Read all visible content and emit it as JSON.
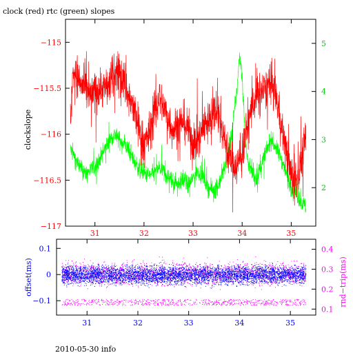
{
  "title": "clock (red) rtc (green) slopes",
  "footer": "2010-05-30 info",
  "colors": {
    "red": "#ff0000",
    "green": "#00ff00",
    "blue": "#0000ff",
    "magenta": "#ff00ff",
    "axis": "#000000"
  },
  "chart_data": [
    {
      "type": "line",
      "ylabel": "clockslope",
      "y2label": "",
      "xlim": [
        30.4,
        35.5
      ],
      "ylim": [
        -117,
        -114.75
      ],
      "y2lim": [
        1.2,
        5.5
      ],
      "xticks": [
        31,
        32,
        33,
        34,
        35
      ],
      "xtick_labels": [
        "31",
        "32",
        "33",
        "34",
        "35"
      ],
      "yticks": [
        -115,
        -115.5,
        -116,
        -116.5,
        -117
      ],
      "ytick_labels": [
        "−115",
        "−115.5",
        "−116",
        "−116.5",
        "−117"
      ],
      "y2ticks": [
        2,
        3,
        4,
        5
      ],
      "y2tick_labels": [
        "2",
        "3",
        "4",
        "5"
      ],
      "series": [
        {
          "name": "clock",
          "color": "#ff0000",
          "axis": "left",
          "x": [
            30.5,
            30.55,
            30.6,
            30.7,
            30.8,
            30.9,
            31.0,
            31.1,
            31.2,
            31.3,
            31.4,
            31.5,
            31.6,
            31.7,
            31.8,
            31.9,
            32.0,
            32.1,
            32.2,
            32.3,
            32.4,
            32.5,
            32.6,
            32.7,
            32.8,
            32.9,
            33.0,
            33.1,
            33.2,
            33.3,
            33.4,
            33.5,
            33.6,
            33.7,
            33.8,
            33.9,
            34.0,
            34.1,
            34.2,
            34.3,
            34.4,
            34.5,
            34.6,
            34.7,
            34.8,
            34.9,
            35.0,
            35.1,
            35.2,
            35.3
          ],
          "y": [
            -115.9,
            -115.35,
            -115.3,
            -115.45,
            -115.5,
            -115.6,
            -115.55,
            -115.5,
            -115.5,
            -115.45,
            -115.35,
            -115.3,
            -115.45,
            -115.6,
            -115.75,
            -115.95,
            -116.1,
            -116.0,
            -115.8,
            -115.6,
            -115.7,
            -115.85,
            -115.95,
            -115.9,
            -115.85,
            -115.95,
            -116.1,
            -116.05,
            -115.95,
            -115.85,
            -115.75,
            -115.7,
            -115.95,
            -116.2,
            -116.3,
            -116.35,
            -116.2,
            -115.95,
            -115.7,
            -115.6,
            -115.55,
            -115.5,
            -115.45,
            -115.6,
            -115.9,
            -116.2,
            -116.45,
            -116.5,
            -116.3,
            -116.0
          ]
        },
        {
          "name": "rtc",
          "color": "#00ff00",
          "axis": "right",
          "x": [
            30.5,
            30.6,
            30.7,
            30.8,
            30.9,
            31.0,
            31.1,
            31.2,
            31.3,
            31.4,
            31.5,
            31.6,
            31.7,
            31.8,
            31.9,
            32.0,
            32.1,
            32.2,
            32.3,
            32.4,
            32.5,
            32.6,
            32.7,
            32.8,
            32.9,
            33.0,
            33.1,
            33.2,
            33.3,
            33.4,
            33.5,
            33.6,
            33.7,
            33.8,
            33.9,
            33.95,
            34.0,
            34.05,
            34.1,
            34.2,
            34.3,
            34.4,
            34.5,
            34.6,
            34.7,
            34.8,
            34.9,
            35.0,
            35.1,
            35.2,
            35.3
          ],
          "y": [
            2.8,
            2.6,
            2.4,
            2.3,
            2.35,
            2.45,
            2.6,
            2.8,
            3.0,
            3.1,
            3.0,
            2.9,
            2.75,
            2.55,
            2.4,
            2.3,
            2.25,
            2.3,
            2.4,
            2.35,
            2.2,
            2.1,
            2.1,
            2.15,
            2.05,
            2.2,
            2.35,
            2.25,
            2.0,
            1.95,
            2.0,
            2.3,
            2.6,
            3.2,
            4.1,
            4.8,
            4.3,
            3.3,
            2.6,
            2.3,
            2.2,
            2.5,
            2.8,
            3.0,
            2.8,
            2.6,
            2.3,
            2.0,
            1.9,
            1.7,
            1.6
          ]
        }
      ]
    },
    {
      "type": "scatter",
      "ylabel": "offset(ms)",
      "y2label": "rnd−trip(ms)",
      "xlim": [
        30.4,
        35.5
      ],
      "ylim": [
        -0.155,
        0.135
      ],
      "y2lim": [
        0.07,
        0.45
      ],
      "xticks": [
        31,
        32,
        33,
        34,
        35
      ],
      "xtick_labels": [
        "31",
        "32",
        "33",
        "34",
        "35"
      ],
      "yticks": [
        0.1,
        0,
        -0.1
      ],
      "ytick_labels": [
        "0.1",
        "0",
        "−0.1"
      ],
      "y2ticks": [
        0.4,
        0.3,
        0.2,
        0.1
      ],
      "y2tick_labels": [
        "0.4",
        "0.3",
        "0.2",
        "0.1"
      ],
      "series": [
        {
          "name": "offset",
          "color": "#0000ff",
          "axis": "left",
          "x_range": [
            30.5,
            35.3
          ],
          "center": 0.0,
          "spread": 0.035
        },
        {
          "name": "rnd-trip",
          "color": "#ff00ff",
          "axis": "right",
          "x_range": [
            30.5,
            35.3
          ],
          "center": 0.28,
          "spread": 0.06,
          "floor": 0.12
        }
      ]
    }
  ]
}
